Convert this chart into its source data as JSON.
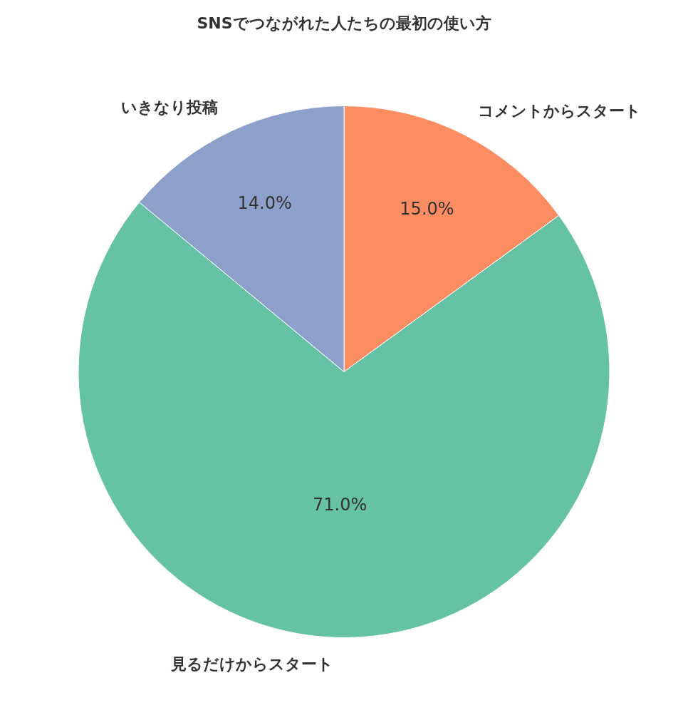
{
  "chart_data": {
    "type": "pie",
    "title": "SNSでつながれた人たちの最初の使い方",
    "categories": [
      "コメントからスタート",
      "見るだけからスタート",
      "いきなり投稿"
    ],
    "values": [
      15,
      71,
      14
    ],
    "colors": [
      "#fc8d62",
      "#66c2a5",
      "#8da0cb"
    ],
    "value_labels": [
      "15.0%",
      "71.0%",
      "14.0%"
    ],
    "legend": false
  }
}
